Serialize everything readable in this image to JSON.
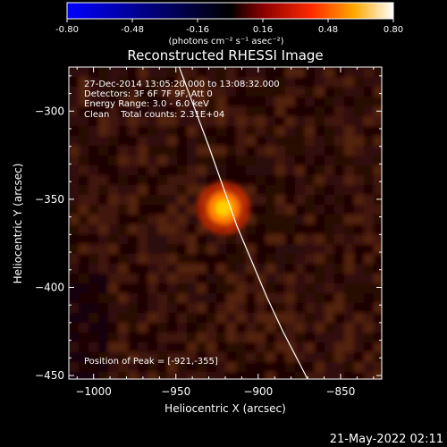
{
  "colorbar": {
    "ticks": [
      "-0.80",
      "-0.48",
      "-0.16",
      "0.16",
      "0.48",
      "0.80"
    ],
    "unit_label": "(photons cm⁻² s⁻¹ asec⁻²)"
  },
  "chart_data": {
    "type": "heatmap",
    "title": "Reconstructed RHESSI Image",
    "xlabel": "Heliocentric X (arcsec)",
    "ylabel": "Heliocentric Y (arcsec)",
    "xlim": [
      -1015,
      -825
    ],
    "ylim": [
      -452,
      -275
    ],
    "x_ticks": [
      -1000,
      -950,
      -900,
      -850
    ],
    "y_ticks": [
      -300,
      -350,
      -400,
      -450
    ],
    "x_tick_labels": [
      "−1000",
      "−950",
      "−900",
      "−850"
    ],
    "y_tick_labels": [
      "−300",
      "−350",
      "−400",
      "−450"
    ],
    "color_range": [
      -0.8,
      0.8
    ],
    "peak": {
      "x": -921,
      "y": -355
    },
    "annotations": [
      "27-Dec-2014 13:05:20.000 to 13:08:32.000",
      "Detectors: 3F 6F 7F 9F, Att 0",
      "Energy Range: 3.0 - 6.0 keV",
      "Clean    Total counts: 2.31E+04"
    ],
    "peak_label": "Position of Peak = [-921,-355]",
    "limb_curve": [
      [
        -948,
        -275
      ],
      [
        -930,
        -320
      ],
      [
        -913,
        -365
      ],
      [
        -895,
        -405
      ],
      [
        -885,
        -425
      ],
      [
        -870,
        -452
      ]
    ]
  },
  "footer": {
    "timestamp": "21-May-2022 02:11"
  }
}
